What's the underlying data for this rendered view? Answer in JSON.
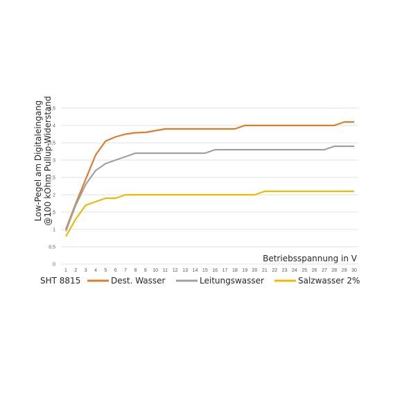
{
  "chart_data": {
    "type": "line",
    "xlabel": "Betriebsspannung in V",
    "ylabel": [
      "Low-Pegel am Digitaleingang",
      "@100 kOhm Pullup-Widerstand"
    ],
    "note": "SHT 8815",
    "x": [
      1,
      2,
      3,
      4,
      5,
      6,
      7,
      8,
      9,
      10,
      11,
      12,
      13,
      14,
      15,
      16,
      17,
      18,
      19,
      20,
      21,
      22,
      23,
      24,
      25,
      26,
      27,
      28,
      29,
      30
    ],
    "ylim": [
      0,
      4.5
    ],
    "yticks": [
      "0",
      "0,5",
      "1",
      "1,5",
      "2",
      "2,5",
      "3",
      "3,5",
      "4",
      "4,5"
    ],
    "grid": true,
    "legend_position": "bottom",
    "series": [
      {
        "name": "Dest. Wasser",
        "color": "#E07B28",
        "values": [
          1.0,
          1.75,
          2.45,
          3.15,
          3.55,
          3.67,
          3.75,
          3.79,
          3.8,
          3.85,
          3.9,
          3.9,
          3.9,
          3.9,
          3.9,
          3.9,
          3.9,
          3.9,
          4.0,
          4.0,
          4.0,
          4.0,
          4.0,
          4.0,
          4.0,
          4.0,
          4.0,
          4.0,
          4.1,
          4.1
        ]
      },
      {
        "name": "Leitungswasser",
        "color": "#A0A0A0",
        "values": [
          0.95,
          1.7,
          2.3,
          2.7,
          2.9,
          3.0,
          3.1,
          3.2,
          3.2,
          3.2,
          3.2,
          3.2,
          3.2,
          3.2,
          3.2,
          3.3,
          3.3,
          3.3,
          3.3,
          3.3,
          3.3,
          3.3,
          3.3,
          3.3,
          3.3,
          3.3,
          3.3,
          3.4,
          3.4,
          3.4
        ]
      },
      {
        "name": "Salzwasser 2%",
        "color": "#F0B800",
        "values": [
          0.8,
          1.3,
          1.7,
          1.8,
          1.9,
          1.9,
          2.0,
          2.0,
          2.0,
          2.0,
          2.0,
          2.0,
          2.0,
          2.0,
          2.0,
          2.0,
          2.0,
          2.0,
          2.0,
          2.0,
          2.1,
          2.1,
          2.1,
          2.1,
          2.1,
          2.1,
          2.1,
          2.1,
          2.1,
          2.1
        ]
      }
    ]
  }
}
